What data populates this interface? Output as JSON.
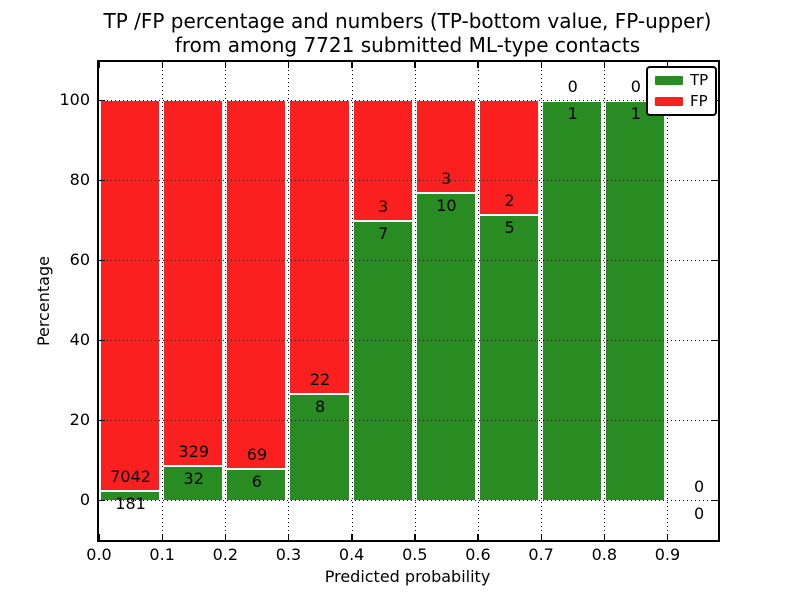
{
  "chart_data": {
    "type": "bar",
    "variant": "stacked-percentage-histogram",
    "title_line1": "TP /FP percentage and numbers (TP-bottom value, FP-upper)",
    "title_line2": "from among 7721 submitted ML-type contacts",
    "xlabel": "Predicted probability",
    "ylabel": "Percentage",
    "total_contacts": 7721,
    "x_ticks": [
      {
        "value": 0.0,
        "label": "0.0"
      },
      {
        "value": 0.1,
        "label": "0.1"
      },
      {
        "value": 0.2,
        "label": "0.2"
      },
      {
        "value": 0.3,
        "label": "0.3"
      },
      {
        "value": 0.4,
        "label": "0.4"
      },
      {
        "value": 0.5,
        "label": "0.5"
      },
      {
        "value": 0.6,
        "label": "0.6"
      },
      {
        "value": 0.7,
        "label": "0.7"
      },
      {
        "value": 0.8,
        "label": "0.8"
      },
      {
        "value": 0.9,
        "label": "0.9"
      }
    ],
    "y_ticks": [
      {
        "value": 0,
        "label": "0"
      },
      {
        "value": 20,
        "label": "20"
      },
      {
        "value": 40,
        "label": "40"
      },
      {
        "value": 60,
        "label": "60"
      },
      {
        "value": 80,
        "label": "80"
      },
      {
        "value": 100,
        "label": "100"
      }
    ],
    "xlim": [
      0,
      0.98
    ],
    "ylim": [
      -10,
      110
    ],
    "grid": "dotted-black-both-axes",
    "bins": [
      {
        "range": [
          0.0,
          0.1
        ],
        "tp": 181,
        "fp": 7042,
        "tp_percent": 2.5
      },
      {
        "range": [
          0.1,
          0.2
        ],
        "tp": 32,
        "fp": 329,
        "tp_percent": 8.9
      },
      {
        "range": [
          0.2,
          0.3
        ],
        "tp": 6,
        "fp": 69,
        "tp_percent": 8.0
      },
      {
        "range": [
          0.3,
          0.4
        ],
        "tp": 8,
        "fp": 22,
        "tp_percent": 26.7
      },
      {
        "range": [
          0.4,
          0.5
        ],
        "tp": 7,
        "fp": 3,
        "tp_percent": 70.0
      },
      {
        "range": [
          0.5,
          0.6
        ],
        "tp": 10,
        "fp": 3,
        "tp_percent": 76.9
      },
      {
        "range": [
          0.6,
          0.7
        ],
        "tp": 5,
        "fp": 2,
        "tp_percent": 71.4
      },
      {
        "range": [
          0.7,
          0.8
        ],
        "tp": 1,
        "fp": 0,
        "tp_percent": 100.0
      },
      {
        "range": [
          0.8,
          0.9
        ],
        "tp": 1,
        "fp": 0,
        "tp_percent": 100.0
      },
      {
        "range": [
          0.9,
          1.0
        ],
        "tp": 0,
        "fp": 0,
        "tp_percent": null
      }
    ],
    "legend": {
      "position": "upper right",
      "entries": [
        {
          "label": "TP",
          "color": "#288c23"
        },
        {
          "label": "FP",
          "color": "#fb2020"
        }
      ]
    },
    "colors": {
      "tp": "#288c23",
      "fp": "#fb2020",
      "grid": "#000000",
      "background": "#ffffff",
      "text": "#000000"
    }
  }
}
